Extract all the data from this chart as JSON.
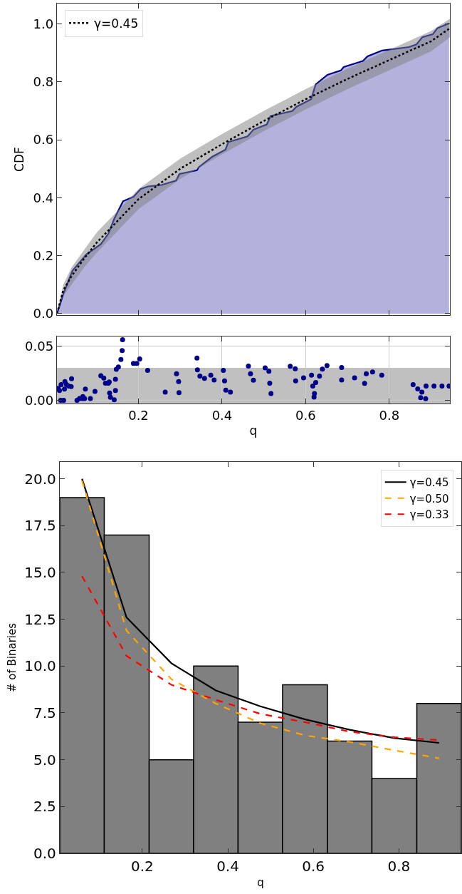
{
  "chart_data": [
    {
      "type": "line",
      "ylabel": "CDF",
      "xlim": [
        0.005,
        0.945
      ],
      "ylim": [
        -0.005,
        1.07
      ],
      "xticks": [
        0.2,
        0.4,
        0.6,
        0.8
      ],
      "yticks": [
        {
          "value": 0,
          "label": "0.0"
        },
        0.2,
        0.4,
        0.6,
        0.8,
        {
          "value": 1,
          "label": "1.0"
        }
      ],
      "tick_labels": "y",
      "grid": false,
      "legend": "top left",
      "series": [
        {
          "type": "area",
          "color": "#00008b",
          "x": [
            0.005,
            0.021,
            0.042,
            0.075,
            0.11,
            0.128,
            0.142,
            0.163,
            0.188,
            0.205,
            0.223,
            0.255,
            0.29,
            0.298,
            0.34,
            0.344,
            0.376,
            0.408,
            0.415,
            0.461,
            0.475,
            0.507,
            0.516,
            0.568,
            0.578,
            0.613,
            0.624,
            0.652,
            0.684,
            0.691,
            0.737,
            0.748,
            0.783,
            0.847,
            0.865,
            0.879,
            0.904,
            0.915,
            0.943
          ],
          "values": [
            0,
            0.071,
            0.148,
            0.204,
            0.24,
            0.276,
            0.327,
            0.388,
            0.403,
            0.43,
            0.439,
            0.444,
            0.459,
            0.482,
            0.495,
            0.505,
            0.541,
            0.566,
            0.592,
            0.612,
            0.635,
            0.653,
            0.682,
            0.699,
            0.714,
            0.74,
            0.791,
            0.824,
            0.839,
            0.851,
            0.872,
            0.888,
            0.908,
            0.92,
            0.929,
            0.954,
            0.964,
            0.985,
            1.002
          ]
        },
        {
          "type": "line",
          "name": "γ=0.45",
          "color": "#000000",
          "line_style": "dotted",
          "x": [
            0.005,
            0.02,
            0.04,
            0.07,
            0.1,
            0.15,
            0.2,
            0.3,
            0.4,
            0.5,
            0.6,
            0.7,
            0.8,
            0.9,
            0.945
          ],
          "values": [
            0,
            0.08,
            0.13,
            0.19,
            0.245,
            0.32,
            0.395,
            0.5,
            0.585,
            0.665,
            0.74,
            0.81,
            0.875,
            0.94,
            0.985
          ],
          "lower": [
            0,
            0.06,
            0.1,
            0.16,
            0.21,
            0.285,
            0.36,
            0.465,
            0.55,
            0.63,
            0.705,
            0.775,
            0.84,
            0.905,
            0.954
          ],
          "upper": [
            0,
            0.1,
            0.16,
            0.22,
            0.28,
            0.355,
            0.43,
            0.535,
            0.62,
            0.7,
            0.775,
            0.845,
            0.91,
            0.975,
            1.018
          ]
        }
      ]
    },
    {
      "type": "scatter",
      "xlabel": "q",
      "xlim": [
        0.005,
        0.945
      ],
      "ylim": [
        -0.003,
        0.059
      ],
      "xticks": [
        0.2,
        0.4,
        0.6,
        0.8
      ],
      "yticks": [
        {
          "value": 0,
          "label": "0.00"
        },
        0.05
      ],
      "grid": true,
      "marker": "circle",
      "color": "#00008b",
      "bands": [
        {
          "axis": "y",
          "from": -0.003,
          "to": 0.03,
          "color": "#c0c0c0"
        }
      ],
      "x": [
        0.008,
        0.011,
        0.014,
        0.015,
        0.021,
        0.023,
        0.024,
        0.028,
        0.033,
        0.039,
        0.04,
        0.053,
        0.059,
        0.066,
        0.067,
        0.071,
        0.073,
        0.085,
        0.096,
        0.11,
        0.117,
        0.121,
        0.128,
        0.13,
        0.131,
        0.133,
        0.142,
        0.145,
        0.145,
        0.147,
        0.152,
        0.158,
        0.161,
        0.162,
        0.188,
        0.196,
        0.203,
        0.222,
        0.264,
        0.291,
        0.296,
        0.297,
        0.34,
        0.341,
        0.347,
        0.358,
        0.373,
        0.381,
        0.403,
        0.406,
        0.409,
        0.42,
        0.463,
        0.468,
        0.475,
        0.503,
        0.512,
        0.514,
        0.517,
        0.563,
        0.575,
        0.576,
        0.595,
        0.614,
        0.617,
        0.62,
        0.621,
        0.624,
        0.633,
        0.64,
        0.651,
        0.686,
        0.686,
        0.717,
        0.741,
        0.745,
        0.76,
        0.782,
        0.857,
        0.868,
        0.875,
        0.878,
        0.887,
        0.888,
        0.907,
        0.926,
        0.943
      ],
      "values": [
        0.011,
        0.009,
        0,
        0.0145,
        0,
        0.0104,
        0.0172,
        0.0145,
        0.0131,
        0.0126,
        0.0199,
        0,
        0.0016,
        0.0016,
        0.0035,
        0.0016,
        0.0104,
        0.0016,
        0.0082,
        0.0227,
        0.0205,
        0.0158,
        0.0158,
        0.0169,
        0.0068,
        0.0027,
        0.0005,
        0.0194,
        0.009,
        0.0287,
        0.0308,
        0.0377,
        0.0459,
        0.056,
        0.0341,
        0.0341,
        0.0382,
        0.0276,
        0.0076,
        0.0246,
        0.0172,
        0.0071,
        0.039,
        0.0281,
        0.0224,
        0.0202,
        0.0232,
        0.0188,
        0.0276,
        0.018,
        0.0093,
        0.0076,
        0.0317,
        0.0246,
        0.0186,
        0.03,
        0.0268,
        0.0158,
        0.0063,
        0.0314,
        0.0292,
        0.018,
        0.0207,
        0.0232,
        0.0131,
        0.003,
        0.0063,
        0.0164,
        0.0224,
        0.0289,
        0.0322,
        0.0303,
        0.0188,
        0.0207,
        0.0156,
        0.0246,
        0.0262,
        0.0232,
        0.0145,
        0.0106,
        0.0025,
        0.0076,
        0.0014,
        0.0131,
        0.0131,
        0.0131,
        0.0131
      ]
    },
    {
      "type": "histogram",
      "xlabel": "q",
      "ylabel": "# of Binaries",
      "xlim": [
        0.007,
        0.946
      ],
      "ylim": [
        0,
        20.9
      ],
      "xticks": [
        0.2,
        0.4,
        0.6,
        0.8
      ],
      "yticks": [
        {
          "value": 0,
          "label": "0.0"
        },
        2.5,
        {
          "value": 5,
          "label": "5.0"
        },
        7.5,
        {
          "value": 10,
          "label": "10.0"
        },
        12.5,
        {
          "value": 15,
          "label": "15.0"
        },
        17.5,
        {
          "value": 20,
          "label": "20.0"
        }
      ],
      "grid": false,
      "legend": "top right",
      "color": "#808080",
      "bins": [
        0.007,
        0.111,
        0.216,
        0.32,
        0.424,
        0.528,
        0.633,
        0.737,
        0.842,
        0.946
      ],
      "values": [
        19,
        17,
        5,
        10,
        7,
        9,
        6,
        4,
        8
      ],
      "series": [
        {
          "type": "line",
          "name": "γ=0.45",
          "color": "#000000",
          "line_style": "solid",
          "x": [
            0.059,
            0.163,
            0.268,
            0.372,
            0.476,
            0.581,
            0.685,
            0.79,
            0.894
          ],
          "values": [
            20.0,
            12.6,
            10.15,
            8.7,
            7.85,
            7.15,
            6.6,
            6.15,
            5.9
          ]
        },
        {
          "type": "line",
          "name": "γ=0.50",
          "color": "#ffa500",
          "line_style": "dashed",
          "x": [
            0.059,
            0.163,
            0.268,
            0.372,
            0.476,
            0.581,
            0.685,
            0.79,
            0.894
          ],
          "values": [
            19.9,
            11.9,
            9.3,
            8.0,
            6.95,
            6.3,
            5.95,
            5.5,
            5.08
          ]
        },
        {
          "type": "line",
          "name": "γ=0.33",
          "color": "#ff0000",
          "line_style": "dashed",
          "x": [
            0.059,
            0.163,
            0.268,
            0.372,
            0.476,
            0.581,
            0.685,
            0.79,
            0.894
          ],
          "values": [
            14.8,
            10.55,
            9.0,
            8.2,
            7.45,
            7.0,
            6.5,
            6.2,
            6.05
          ]
        }
      ]
    }
  ]
}
